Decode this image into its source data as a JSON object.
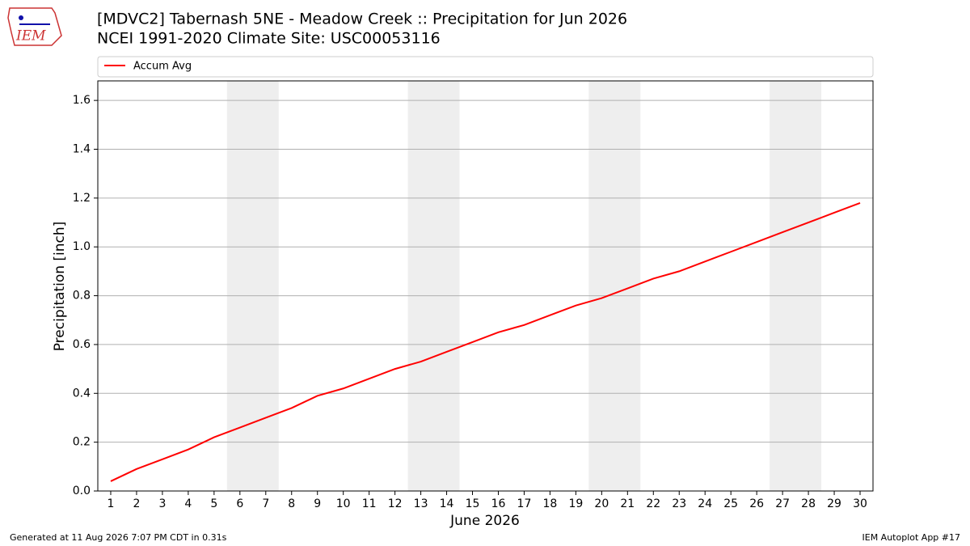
{
  "chart_data": {
    "type": "line",
    "title": "[MDVC2] Tabernash 5NE - Meadow Creek :: Precipitation for Jun 2026",
    "subtitle": "NCEI 1991-2020 Climate Site: USC00053116",
    "xlabel": "June 2026",
    "ylabel": "Precipitation [inch]",
    "x": [
      1,
      2,
      3,
      4,
      5,
      6,
      7,
      8,
      9,
      10,
      11,
      12,
      13,
      14,
      15,
      16,
      17,
      18,
      19,
      20,
      21,
      22,
      23,
      24,
      25,
      26,
      27,
      28,
      29,
      30
    ],
    "series": [
      {
        "name": "Accum Avg",
        "color": "#ff0000",
        "values": [
          0.04,
          0.09,
          0.13,
          0.17,
          0.22,
          0.26,
          0.3,
          0.34,
          0.39,
          0.42,
          0.46,
          0.5,
          0.53,
          0.57,
          0.61,
          0.65,
          0.68,
          0.72,
          0.76,
          0.79,
          0.83,
          0.87,
          0.9,
          0.94,
          0.98,
          1.02,
          1.06,
          1.1,
          1.14,
          1.18
        ]
      }
    ],
    "xlim": [
      0.5,
      30.5
    ],
    "xticks": [
      1,
      2,
      3,
      4,
      5,
      6,
      7,
      8,
      9,
      10,
      11,
      12,
      13,
      14,
      15,
      16,
      17,
      18,
      19,
      20,
      21,
      22,
      23,
      24,
      25,
      26,
      27,
      28,
      29,
      30
    ],
    "ylim": [
      0,
      1.68
    ],
    "yticks": [
      {
        "value": 0,
        "label": "0.0"
      },
      0.2,
      0.4,
      0.6,
      0.8,
      {
        "value": 1,
        "label": "1.0"
      },
      1.2,
      1.4,
      1.6
    ],
    "shaded_ranges": [
      [
        5.5,
        7.5
      ],
      [
        12.5,
        14.5
      ],
      [
        19.5,
        21.5
      ],
      [
        26.5,
        28.5
      ]
    ],
    "shade_color": "#eeeeee",
    "grid": true,
    "legend": "top"
  },
  "logo_text": "IEM",
  "footer": {
    "left": "Generated at 11 Aug 2026 7:07 PM CDT in 0.31s",
    "right": "IEM Autoplot App #17"
  }
}
